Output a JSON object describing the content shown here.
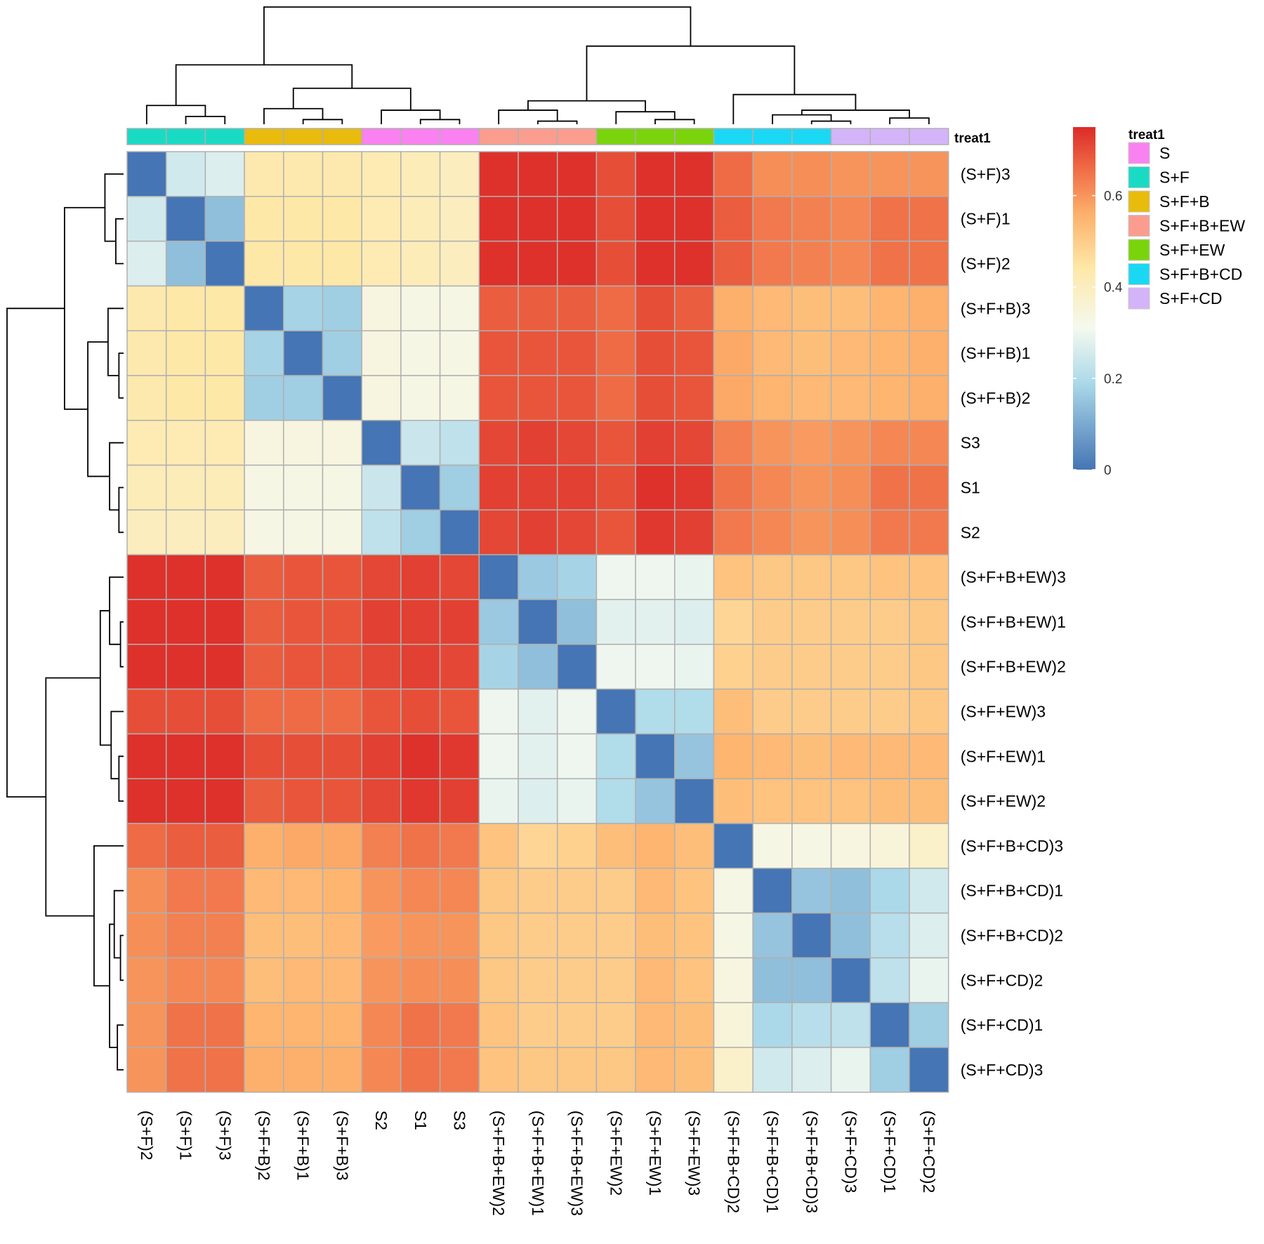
{
  "chart_data": {
    "type": "heatmap",
    "title": "",
    "row_labels": [
      "(S+F)3",
      "(S+F)1",
      "(S+F)2",
      "(S+F+B)3",
      "(S+F+B)1",
      "(S+F+B)2",
      "S3",
      "S1",
      "S2",
      "(S+F+B+EW)3",
      "(S+F+B+EW)1",
      "(S+F+B+EW)2",
      "(S+F+EW)3",
      "(S+F+EW)1",
      "(S+F+EW)2",
      "(S+F+B+CD)3",
      "(S+F+B+CD)1",
      "(S+F+B+CD)2",
      "(S+F+CD)2",
      "(S+F+CD)1",
      "(S+F+CD)3"
    ],
    "col_labels": [
      "(S+F)2",
      "(S+F)1",
      "(S+F)3",
      "(S+F+B)2",
      "(S+F+B)1",
      "(S+F+B)3",
      "S2",
      "S1",
      "S3",
      "(S+F+B+EW)2",
      "(S+F+B+EW)1",
      "(S+F+B+EW)3",
      "(S+F+EW)2",
      "(S+F+EW)1",
      "(S+F+EW)3",
      "(S+F+B+CD)2",
      "(S+F+B+CD)1",
      "(S+F+B+CD)3",
      "(S+F+CD)3",
      "(S+F+CD)1",
      "(S+F+CD)2"
    ],
    "col_groups": [
      "S+F",
      "S+F",
      "S+F",
      "S+F+B",
      "S+F+B",
      "S+F+B",
      "S",
      "S",
      "S",
      "S+F+B+EW",
      "S+F+B+EW",
      "S+F+B+EW",
      "S+F+EW",
      "S+F+EW",
      "S+F+EW",
      "S+F+B+CD",
      "S+F+B+CD",
      "S+F+B+CD",
      "S+F+CD",
      "S+F+CD",
      "S+F+CD"
    ],
    "values": [
      [
        0.0,
        0.25,
        0.27,
        0.43,
        0.43,
        0.43,
        0.42,
        0.41,
        0.4,
        0.74,
        0.74,
        0.74,
        0.7,
        0.74,
        0.74,
        0.66,
        0.61,
        0.61,
        0.6,
        0.6,
        0.6
      ],
      [
        0.25,
        0.0,
        0.14,
        0.44,
        0.44,
        0.44,
        0.42,
        0.41,
        0.4,
        0.74,
        0.74,
        0.74,
        0.7,
        0.74,
        0.74,
        0.68,
        0.64,
        0.63,
        0.62,
        0.65,
        0.65
      ],
      [
        0.27,
        0.14,
        0.0,
        0.44,
        0.44,
        0.44,
        0.42,
        0.41,
        0.4,
        0.74,
        0.74,
        0.74,
        0.7,
        0.74,
        0.74,
        0.68,
        0.64,
        0.63,
        0.62,
        0.65,
        0.65
      ],
      [
        0.43,
        0.44,
        0.44,
        0.0,
        0.18,
        0.17,
        0.34,
        0.33,
        0.33,
        0.68,
        0.68,
        0.68,
        0.66,
        0.7,
        0.68,
        0.56,
        0.54,
        0.53,
        0.53,
        0.55,
        0.56
      ],
      [
        0.43,
        0.44,
        0.44,
        0.18,
        0.0,
        0.17,
        0.34,
        0.33,
        0.33,
        0.69,
        0.69,
        0.69,
        0.66,
        0.7,
        0.69,
        0.57,
        0.54,
        0.53,
        0.54,
        0.55,
        0.56
      ],
      [
        0.43,
        0.44,
        0.44,
        0.17,
        0.17,
        0.0,
        0.34,
        0.33,
        0.33,
        0.69,
        0.69,
        0.69,
        0.66,
        0.7,
        0.69,
        0.57,
        0.55,
        0.54,
        0.54,
        0.55,
        0.56
      ],
      [
        0.42,
        0.42,
        0.42,
        0.34,
        0.34,
        0.34,
        0.0,
        0.24,
        0.22,
        0.71,
        0.72,
        0.71,
        0.69,
        0.72,
        0.71,
        0.63,
        0.6,
        0.59,
        0.6,
        0.62,
        0.62
      ],
      [
        0.41,
        0.41,
        0.41,
        0.33,
        0.33,
        0.33,
        0.24,
        0.0,
        0.17,
        0.72,
        0.72,
        0.72,
        0.7,
        0.74,
        0.73,
        0.65,
        0.62,
        0.6,
        0.61,
        0.65,
        0.65
      ],
      [
        0.4,
        0.4,
        0.4,
        0.33,
        0.33,
        0.33,
        0.22,
        0.17,
        0.0,
        0.71,
        0.72,
        0.71,
        0.69,
        0.73,
        0.72,
        0.64,
        0.62,
        0.6,
        0.61,
        0.64,
        0.64
      ],
      [
        0.74,
        0.74,
        0.74,
        0.68,
        0.69,
        0.69,
        0.71,
        0.72,
        0.71,
        0.0,
        0.16,
        0.18,
        0.3,
        0.3,
        0.29,
        0.52,
        0.51,
        0.51,
        0.51,
        0.52,
        0.52
      ],
      [
        0.74,
        0.74,
        0.74,
        0.68,
        0.69,
        0.69,
        0.72,
        0.72,
        0.72,
        0.16,
        0.0,
        0.14,
        0.28,
        0.28,
        0.27,
        0.48,
        0.5,
        0.5,
        0.5,
        0.5,
        0.51
      ],
      [
        0.74,
        0.74,
        0.74,
        0.68,
        0.69,
        0.69,
        0.71,
        0.72,
        0.71,
        0.18,
        0.14,
        0.0,
        0.3,
        0.3,
        0.29,
        0.49,
        0.5,
        0.5,
        0.5,
        0.5,
        0.51
      ],
      [
        0.7,
        0.7,
        0.7,
        0.66,
        0.66,
        0.66,
        0.69,
        0.7,
        0.69,
        0.3,
        0.28,
        0.3,
        0.0,
        0.2,
        0.2,
        0.53,
        0.5,
        0.5,
        0.5,
        0.5,
        0.51
      ],
      [
        0.74,
        0.74,
        0.74,
        0.7,
        0.7,
        0.7,
        0.72,
        0.74,
        0.73,
        0.3,
        0.28,
        0.3,
        0.2,
        0.0,
        0.15,
        0.55,
        0.54,
        0.53,
        0.54,
        0.54,
        0.54
      ],
      [
        0.74,
        0.74,
        0.74,
        0.68,
        0.69,
        0.69,
        0.71,
        0.73,
        0.72,
        0.29,
        0.27,
        0.29,
        0.2,
        0.15,
        0.0,
        0.53,
        0.52,
        0.52,
        0.52,
        0.53,
        0.53
      ],
      [
        0.66,
        0.68,
        0.68,
        0.56,
        0.57,
        0.57,
        0.63,
        0.65,
        0.64,
        0.52,
        0.48,
        0.49,
        0.53,
        0.55,
        0.53,
        0.0,
        0.33,
        0.33,
        0.34,
        0.35,
        0.38
      ],
      [
        0.61,
        0.64,
        0.64,
        0.54,
        0.54,
        0.55,
        0.6,
        0.62,
        0.62,
        0.51,
        0.5,
        0.5,
        0.5,
        0.54,
        0.52,
        0.33,
        0.0,
        0.15,
        0.14,
        0.19,
        0.25
      ],
      [
        0.61,
        0.63,
        0.63,
        0.53,
        0.53,
        0.54,
        0.59,
        0.6,
        0.6,
        0.51,
        0.5,
        0.5,
        0.5,
        0.53,
        0.52,
        0.33,
        0.15,
        0.0,
        0.14,
        0.21,
        0.27
      ],
      [
        0.6,
        0.62,
        0.62,
        0.53,
        0.54,
        0.54,
        0.6,
        0.61,
        0.61,
        0.51,
        0.5,
        0.5,
        0.5,
        0.54,
        0.52,
        0.34,
        0.14,
        0.14,
        0.0,
        0.22,
        0.29
      ],
      [
        0.6,
        0.65,
        0.65,
        0.55,
        0.55,
        0.55,
        0.62,
        0.65,
        0.64,
        0.52,
        0.5,
        0.5,
        0.5,
        0.54,
        0.53,
        0.35,
        0.19,
        0.21,
        0.22,
        0.0,
        0.17
      ],
      [
        0.6,
        0.65,
        0.65,
        0.56,
        0.56,
        0.56,
        0.62,
        0.65,
        0.64,
        0.52,
        0.51,
        0.51,
        0.51,
        0.54,
        0.53,
        0.38,
        0.25,
        0.27,
        0.29,
        0.17,
        0.0
      ]
    ],
    "color_scale": {
      "range": [
        0,
        0.75
      ],
      "stops": [
        {
          "value": 0.0,
          "color": "#4575b4"
        },
        {
          "value": 0.19,
          "color": "#abd9e9"
        },
        {
          "value": 0.31,
          "color": "#f5f9ef"
        },
        {
          "value": 0.44,
          "color": "#fee8a8"
        },
        {
          "value": 0.56,
          "color": "#fdb06b"
        },
        {
          "value": 0.66,
          "color": "#ef6b45"
        },
        {
          "value": 0.75,
          "color": "#dc2a28"
        }
      ],
      "ticks": [
        0,
        0.2,
        0.4,
        0.6
      ],
      "tick_labels": [
        "0",
        "0.2",
        "0.4",
        "0.6"
      ]
    },
    "annotation_title": "treat1",
    "annotation_legend": [
      {
        "label": "S",
        "color": "#f982f0"
      },
      {
        "label": "S+F",
        "color": "#19dbc4"
      },
      {
        "label": "S+F+B",
        "color": "#e8bb0d"
      },
      {
        "label": "S+F+B+EW",
        "color": "#fa9d8f"
      },
      {
        "label": "S+F+EW",
        "color": "#7ad40b"
      },
      {
        "label": "S+F+B+CD",
        "color": "#1ad8f4"
      },
      {
        "label": "S+F+CD",
        "color": "#d3b4f9"
      }
    ],
    "grid_color": "#b0b0b0",
    "dendrogram_color": "#000000"
  }
}
